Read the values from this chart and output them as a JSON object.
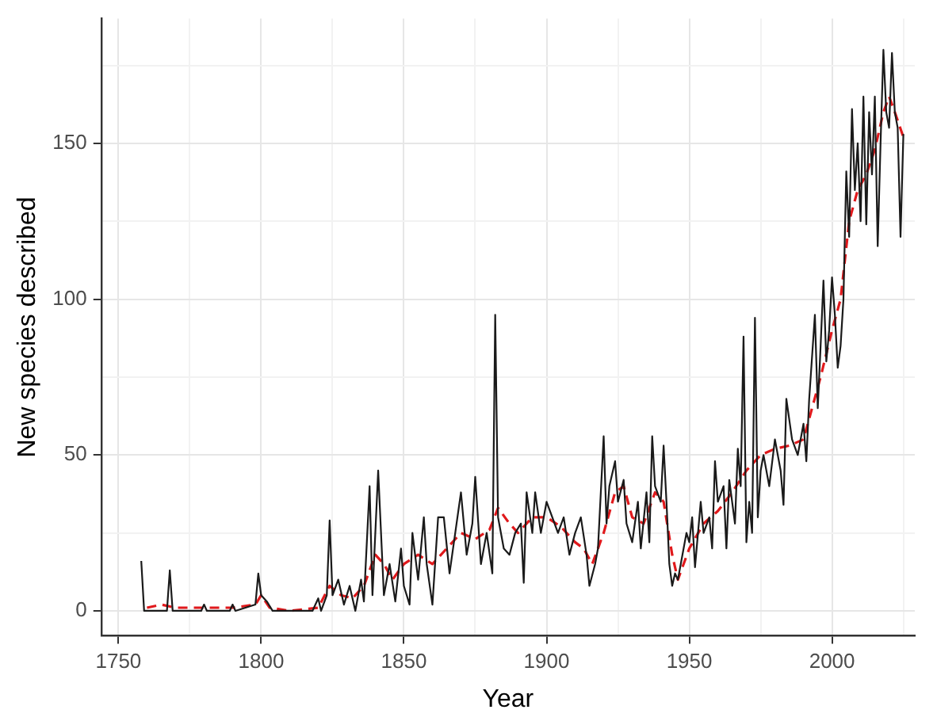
{
  "chart_data": {
    "type": "line",
    "xlabel": "Year",
    "ylabel": "New species described",
    "xlim": [
      1744,
      2029
    ],
    "ylim": [
      -8,
      190
    ],
    "xticks": [
      1750,
      {
        "value": 1775,
        "label": null
      },
      1800,
      {
        "value": 1825,
        "label": null
      },
      1850,
      {
        "value": 1875,
        "label": null
      },
      1900,
      {
        "value": 1925,
        "label": null
      },
      1950,
      {
        "value": 1975,
        "label": null
      },
      2000,
      {
        "value": 2025,
        "label": null
      }
    ],
    "yticks": [
      0,
      {
        "value": 25,
        "label": null
      },
      50,
      {
        "value": 75,
        "label": null
      },
      100,
      {
        "value": 125,
        "label": null
      },
      150,
      {
        "value": 175,
        "label": null
      }
    ],
    "grid": true,
    "legend": false,
    "marker": "none",
    "series": [
      {
        "color": "#1a1a1a",
        "line_style": "solid",
        "x": [
          1758,
          1759,
          1767,
          1768,
          1769,
          1779,
          1780,
          1781,
          1789,
          1790,
          1791,
          1798,
          1799,
          1800,
          1802,
          1804,
          1818,
          1820,
          1821,
          1823,
          1824,
          1825,
          1827,
          1829,
          1831,
          1833,
          1835,
          1836,
          1838,
          1839,
          1841,
          1843,
          1845,
          1847,
          1849,
          1850,
          1852,
          1853,
          1855,
          1857,
          1858,
          1860,
          1862,
          1864,
          1866,
          1868,
          1870,
          1872,
          1874,
          1875,
          1877,
          1879,
          1881,
          1882,
          1883,
          1885,
          1887,
          1889,
          1891,
          1892,
          1893,
          1895,
          1896,
          1898,
          1900,
          1902,
          1904,
          1906,
          1908,
          1910,
          1912,
          1914,
          1915,
          1917,
          1918,
          1920,
          1921,
          1922,
          1924,
          1925,
          1927,
          1928,
          1930,
          1932,
          1933,
          1935,
          1936,
          1937,
          1938,
          1940,
          1941,
          1942,
          1943,
          1944,
          1945,
          1946,
          1947,
          1949,
          1950,
          1951,
          1952,
          1954,
          1955,
          1957,
          1958,
          1959,
          1960,
          1962,
          1963,
          1964,
          1966,
          1967,
          1968,
          1969,
          1970,
          1971,
          1972,
          1973,
          1974,
          1975,
          1976,
          1978,
          1980,
          1982,
          1983,
          1984,
          1986,
          1988,
          1990,
          1991,
          1992,
          1994,
          1995,
          1996,
          1997,
          1998,
          1999,
          2000,
          2001,
          2002,
          2003,
          2004,
          2005,
          2006,
          2007,
          2008,
          2009,
          2010,
          2011,
          2012,
          2013,
          2014,
          2015,
          2016,
          2017,
          2018,
          2019,
          2020,
          2021,
          2022,
          2023,
          2024,
          2025
        ],
        "values": [
          16,
          0,
          0,
          13,
          0,
          0,
          2,
          0,
          0,
          2,
          0,
          2,
          12,
          5,
          3,
          0,
          0,
          4,
          0,
          5,
          29,
          5,
          10,
          2,
          8,
          0,
          10,
          3,
          40,
          5,
          45,
          5,
          15,
          3,
          20,
          8,
          2,
          25,
          10,
          30,
          15,
          2,
          30,
          30,
          12,
          25,
          38,
          18,
          28,
          43,
          15,
          25,
          12,
          95,
          30,
          20,
          18,
          25,
          28,
          9,
          38,
          25,
          38,
          25,
          35,
          30,
          25,
          30,
          18,
          25,
          30,
          18,
          8,
          15,
          20,
          56,
          28,
          40,
          48,
          35,
          42,
          28,
          22,
          35,
          20,
          38,
          22,
          56,
          40,
          35,
          53,
          35,
          15,
          8,
          12,
          10,
          15,
          25,
          22,
          30,
          14,
          35,
          25,
          30,
          20,
          48,
          35,
          40,
          20,
          42,
          28,
          52,
          40,
          88,
          22,
          35,
          25,
          94,
          30,
          45,
          50,
          40,
          55,
          45,
          34,
          68,
          55,
          50,
          60,
          48,
          68,
          95,
          65,
          85,
          106,
          80,
          90,
          107,
          95,
          78,
          85,
          100,
          141,
          120,
          161,
          135,
          150,
          125,
          165,
          124,
          160,
          140,
          165,
          117,
          150,
          180,
          160,
          155,
          179,
          160,
          155,
          120,
          153
        ]
      },
      {
        "color": "#e0191c",
        "line_style": "dashed",
        "x": [
          1760,
          1765,
          1770,
          1780,
          1790,
          1798,
          1800,
          1803,
          1810,
          1820,
          1824,
          1828,
          1832,
          1836,
          1840,
          1843,
          1846,
          1850,
          1855,
          1860,
          1865,
          1870,
          1875,
          1880,
          1883,
          1887,
          1890,
          1895,
          1900,
          1905,
          1910,
          1913,
          1916,
          1920,
          1924,
          1927,
          1930,
          1934,
          1938,
          1941,
          1944,
          1946,
          1950,
          1955,
          1960,
          1965,
          1970,
          1975,
          1980,
          1985,
          1990,
          1993,
          1996,
          2000,
          2003,
          2006,
          2009,
          2012,
          2015,
          2018,
          2020,
          2022,
          2025
        ],
        "values": [
          1,
          2,
          1,
          1,
          1,
          2,
          5,
          1,
          0,
          1,
          8,
          5,
          4,
          8,
          18,
          15,
          10,
          15,
          18,
          15,
          20,
          25,
          23,
          26,
          33,
          28,
          25,
          30,
          30,
          27,
          22,
          20,
          15,
          25,
          38,
          40,
          30,
          28,
          38,
          35,
          18,
          10,
          20,
          28,
          32,
          38,
          45,
          50,
          52,
          53,
          55,
          65,
          75,
          90,
          100,
          125,
          135,
          140,
          148,
          160,
          165,
          160,
          152
        ]
      }
    ]
  }
}
